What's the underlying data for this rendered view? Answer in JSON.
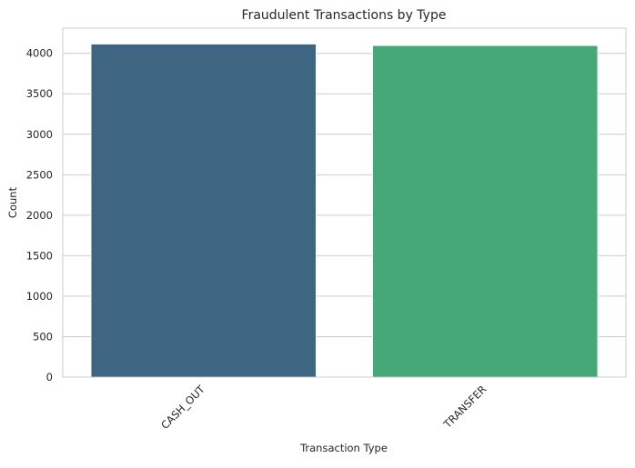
{
  "chart_data": {
    "type": "bar",
    "title": "Fraudulent Transactions by Type",
    "xlabel": "Transaction Type",
    "ylabel": "Count",
    "categories": [
      "CASH_OUT",
      "TRANSFER"
    ],
    "values": [
      4116,
      4097
    ],
    "bar_colors": [
      "#3e6682",
      "#46a876"
    ],
    "ylim": [
      0,
      4311
    ],
    "yticks": [
      0,
      500,
      1000,
      1500,
      2000,
      2500,
      3000,
      3500,
      4000
    ],
    "grid": "horizontal",
    "xtick_rotation": 45
  }
}
